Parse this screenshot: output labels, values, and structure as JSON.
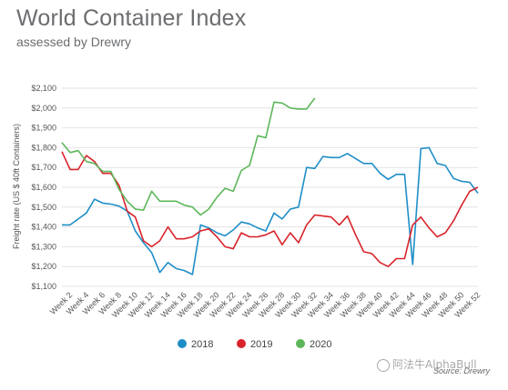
{
  "header": {
    "title": "World Container Index",
    "subtitle": "assessed by Drewry"
  },
  "footer": {
    "source": "Source: Drewry"
  },
  "watermark": {
    "text": "阿法牛AlphaBull",
    "icon": "chat-bubble-icon"
  },
  "chart_data": {
    "type": "line",
    "title": "",
    "xlabel": "",
    "ylabel": "Freight rate (US $ 40ft Containers)",
    "ylim": [
      1100,
      2100
    ],
    "yticks": [
      1100,
      1200,
      1300,
      1400,
      1500,
      1600,
      1700,
      1800,
      1900,
      2000,
      2100
    ],
    "ytick_labels": [
      "$1,100",
      "$1,200",
      "$1,300",
      "$1,400",
      "$1,500",
      "$1,600",
      "$1,700",
      "$1,800",
      "$1,900",
      "$2,000",
      "$2,100"
    ],
    "xlim": [
      1,
      52
    ],
    "xtick_labels": [
      "Week 2",
      "Week 4",
      "Week 6",
      "Week 8",
      "Week 10",
      "Week 12",
      "Week 14",
      "Week 16",
      "Week 18",
      "Week 20",
      "Week 22",
      "Week 24",
      "Week 26",
      "Week 28",
      "Week 30",
      "Week 32",
      "Week 34",
      "Week 36",
      "Week 38",
      "Week 40",
      "Week 42",
      "Week 44",
      "Week 46",
      "Week 48",
      "Week 50",
      "Week 52"
    ],
    "xtick_weeks": [
      2,
      4,
      6,
      8,
      10,
      12,
      14,
      16,
      18,
      20,
      22,
      24,
      26,
      28,
      30,
      32,
      34,
      36,
      38,
      40,
      42,
      44,
      46,
      48,
      50,
      52
    ],
    "grid": "horizontal",
    "legend_position": "bottom",
    "series": [
      {
        "name": "2018",
        "color": "#1f8ec7",
        "weeks": [
          1,
          2,
          3,
          4,
          5,
          6,
          7,
          8,
          9,
          10,
          11,
          12,
          13,
          14,
          15,
          16,
          17,
          18,
          19,
          20,
          21,
          22,
          23,
          24,
          25,
          26,
          27,
          28,
          29,
          30,
          31,
          32,
          33,
          34,
          35,
          36,
          37,
          38,
          39,
          40,
          41,
          42,
          43,
          44,
          45,
          46,
          47,
          48,
          49,
          50,
          51,
          52
        ],
        "values": [
          1410,
          1410,
          1440,
          1470,
          1540,
          1520,
          1515,
          1505,
          1480,
          1380,
          1320,
          1270,
          1170,
          1220,
          1190,
          1180,
          1160,
          1410,
          1395,
          1370,
          1355,
          1385,
          1425,
          1415,
          1395,
          1380,
          1470,
          1440,
          1490,
          1500,
          1700,
          1695,
          1755,
          1750,
          1750,
          1770,
          1745,
          1720,
          1720,
          1670,
          1640,
          1665,
          1665,
          1210,
          1795,
          1800,
          1720,
          1710,
          1645,
          1630,
          1625,
          1570
        ]
      },
      {
        "name": "2019",
        "color": "#d8232a",
        "weeks": [
          1,
          2,
          3,
          4,
          5,
          6,
          7,
          8,
          9,
          10,
          11,
          12,
          13,
          14,
          15,
          16,
          17,
          18,
          19,
          20,
          21,
          22,
          23,
          24,
          25,
          26,
          27,
          28,
          29,
          30,
          31,
          32,
          33,
          34,
          35,
          36,
          37,
          38,
          39,
          40,
          41,
          42,
          43,
          44,
          45,
          46,
          47,
          48,
          49,
          50,
          51,
          52
        ],
        "values": [
          1780,
          1690,
          1690,
          1760,
          1730,
          1670,
          1670,
          1610,
          1480,
          1450,
          1330,
          1300,
          1330,
          1400,
          1340,
          1340,
          1350,
          1380,
          1390,
          1350,
          1300,
          1290,
          1370,
          1350,
          1350,
          1360,
          1380,
          1310,
          1370,
          1320,
          1410,
          1460,
          1455,
          1450,
          1410,
          1455,
          1360,
          1275,
          1265,
          1220,
          1200,
          1240,
          1240,
          1410,
          1450,
          1395,
          1350,
          1370,
          1430,
          1510,
          1580,
          1600
        ]
      },
      {
        "name": "2020",
        "color": "#5db75a",
        "weeks": [
          1,
          2,
          3,
          4,
          5,
          6,
          7,
          8,
          9,
          10,
          11,
          12,
          13,
          14,
          15,
          16,
          17,
          18,
          19,
          20,
          21,
          22,
          23,
          24,
          25,
          26,
          27,
          28,
          29,
          30,
          31,
          32
        ],
        "values": [
          1825,
          1775,
          1785,
          1730,
          1720,
          1680,
          1680,
          1590,
          1530,
          1490,
          1485,
          1580,
          1530,
          1530,
          1530,
          1510,
          1500,
          1460,
          1490,
          1550,
          1595,
          1580,
          1685,
          1710,
          1860,
          1850,
          2030,
          2025,
          2000,
          1995,
          1995,
          2050
        ]
      }
    ]
  }
}
